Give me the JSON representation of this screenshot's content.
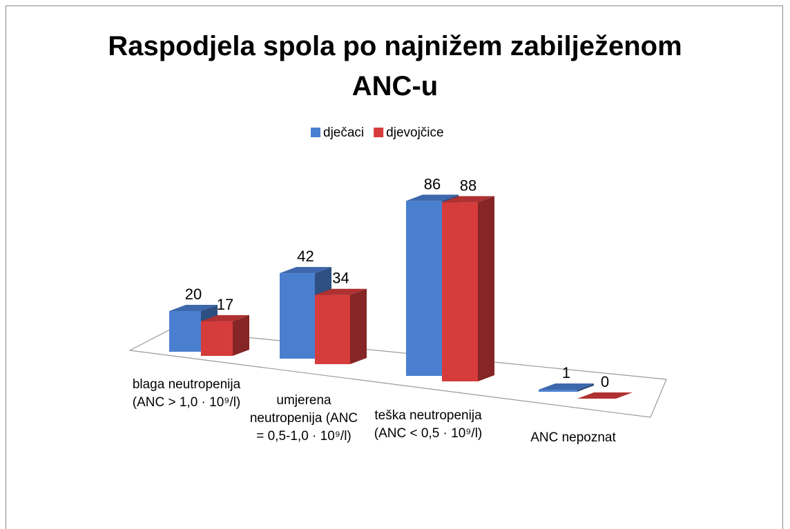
{
  "chart_data": {
    "type": "bar3d",
    "title": "Raspodjela spola po najnižem zabilježenom ANC-u",
    "categories": [
      "blaga neutropenija (ANC > 1,0 · 10⁹/l)",
      "umjerena neutropenija (ANC = 0,5-1,0 · 10⁹/l)",
      "teška neutropenija (ANC < 0,5 · 10⁹/l)",
      "ANC nepoznat"
    ],
    "series": [
      {
        "name": "dječaci",
        "color": "#4a7fd0",
        "values": [
          20,
          42,
          86,
          1
        ]
      },
      {
        "name": "djevojčice",
        "color": "#d63c3c",
        "values": [
          17,
          34,
          88,
          0
        ]
      }
    ],
    "legend": "top"
  }
}
